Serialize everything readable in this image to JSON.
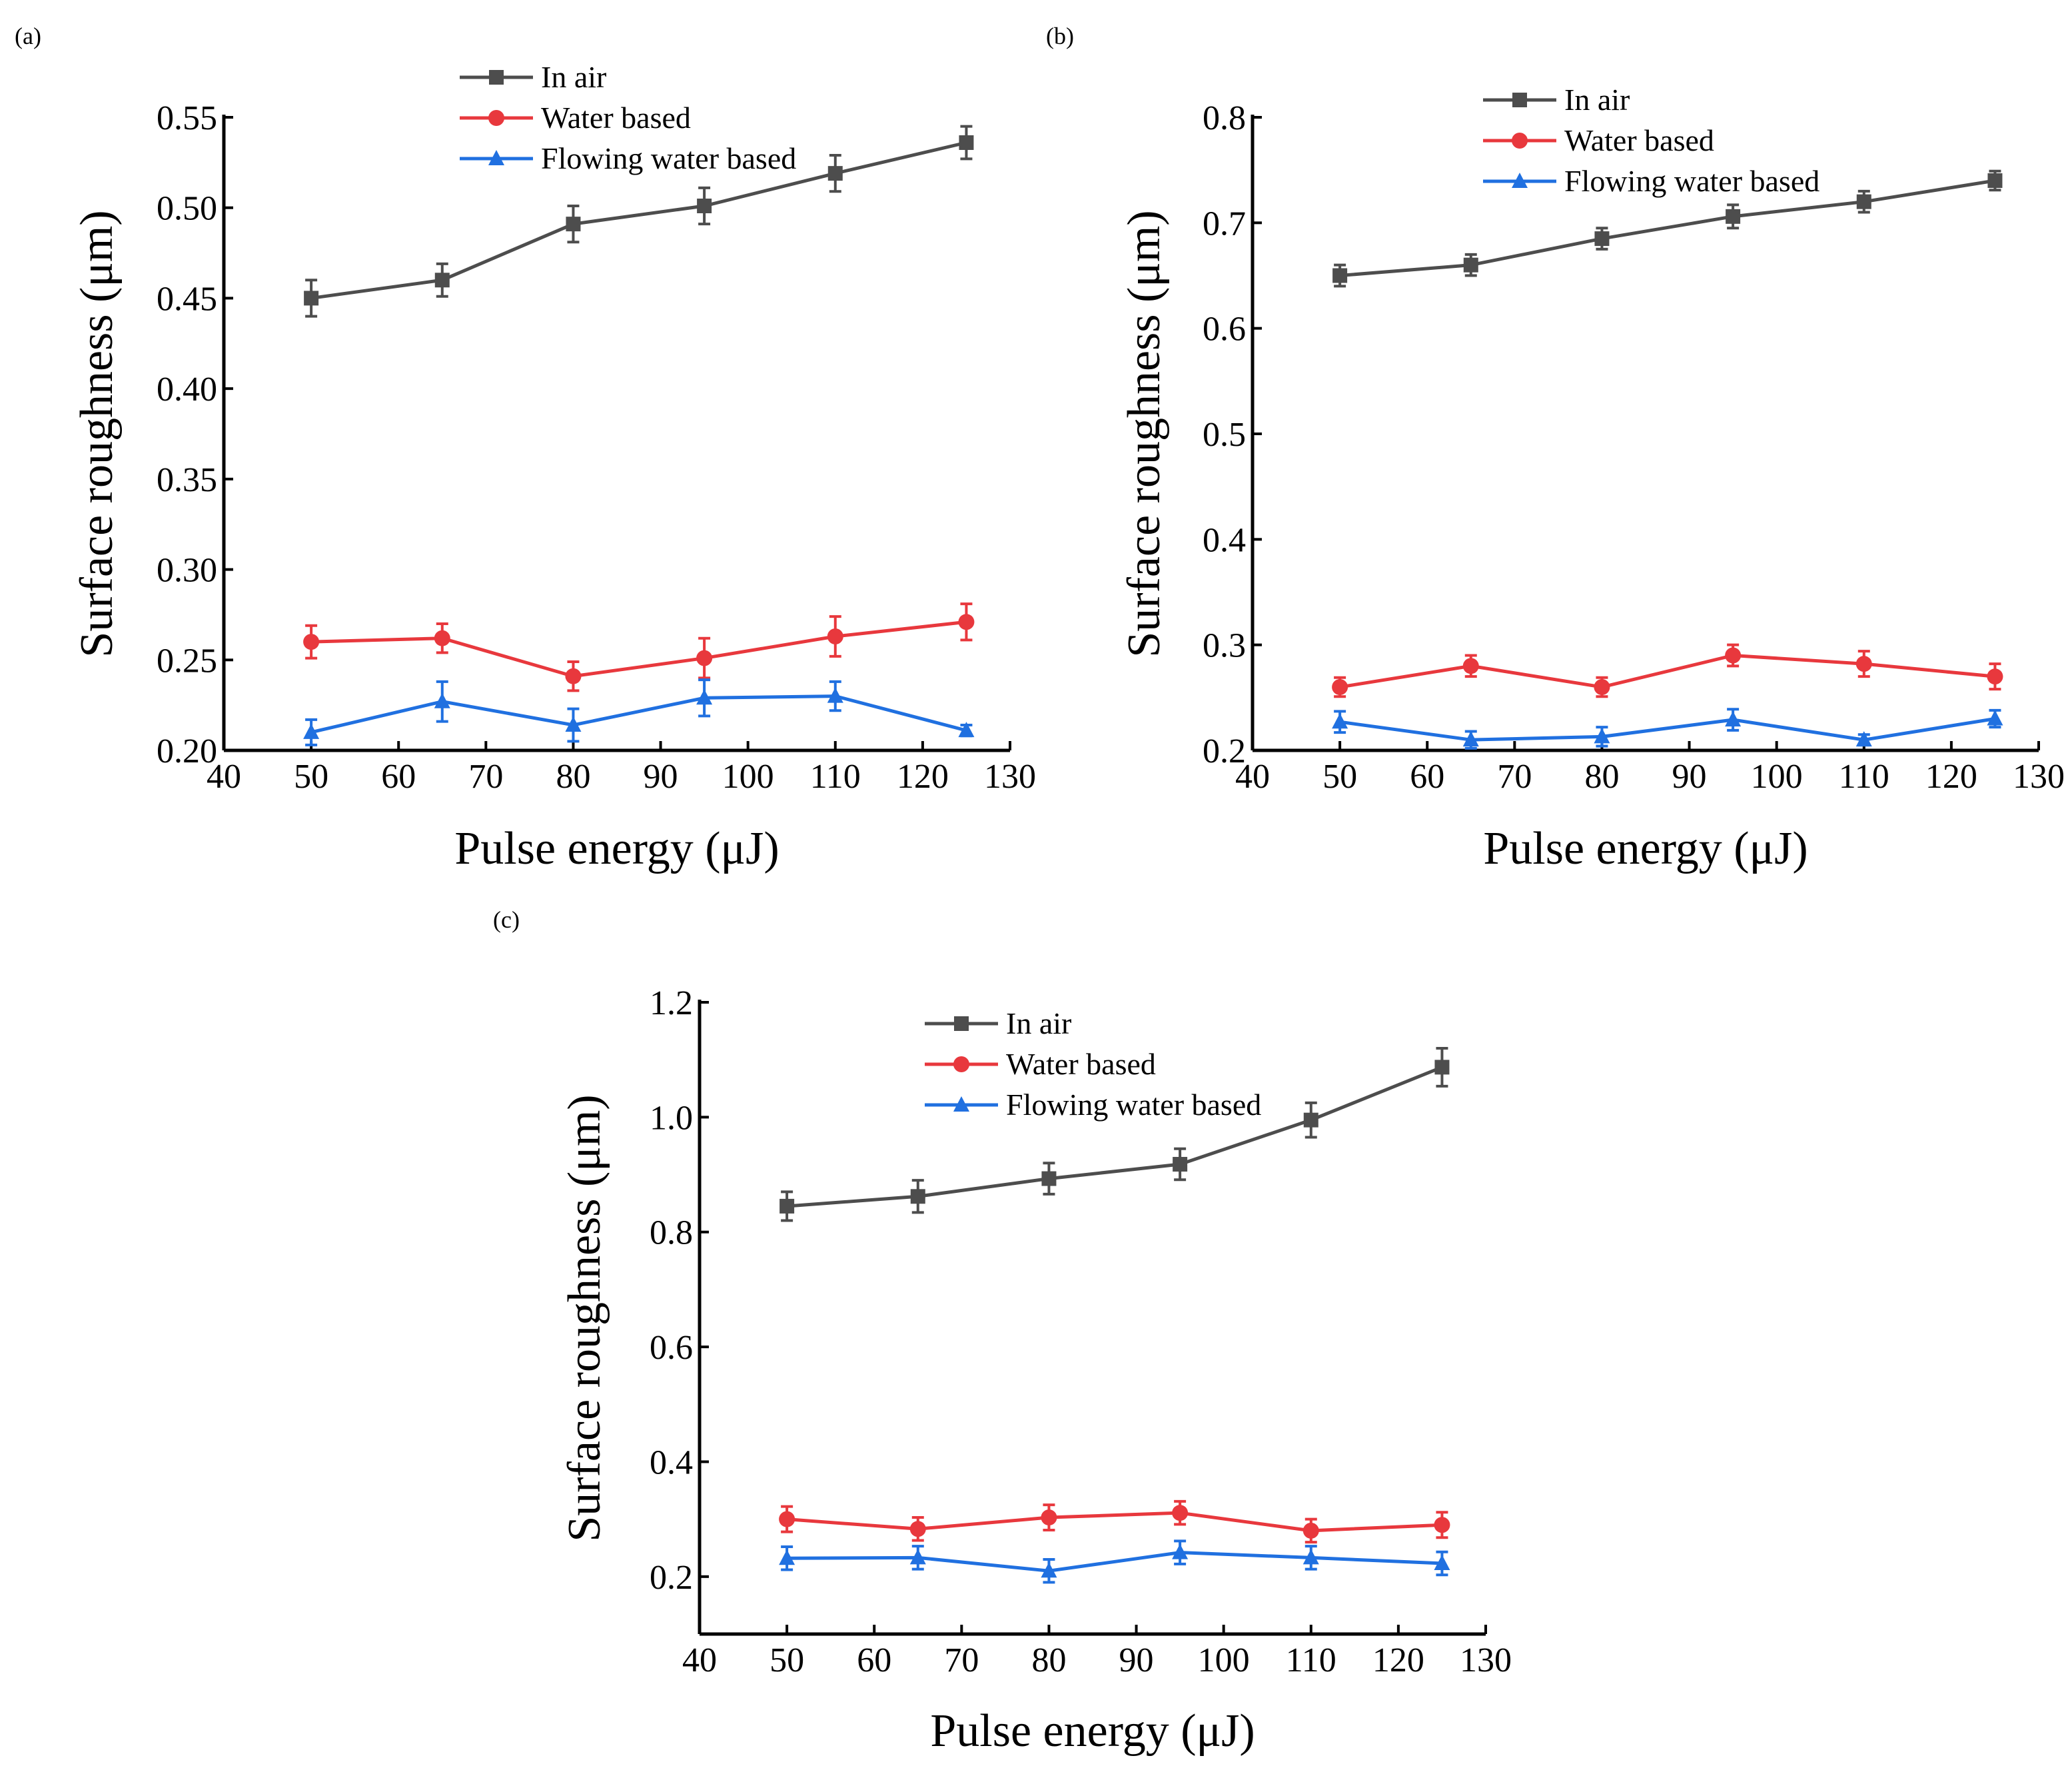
{
  "chart_data": [
    {
      "type": "line",
      "panel_label": "(a)",
      "xlabel": "Pulse energy (μJ)",
      "ylabel": "Surface roughness (μm)",
      "xlim": [
        40,
        130
      ],
      "ylim": [
        0.2,
        0.55
      ],
      "xticks": [
        "40",
        "50",
        "60",
        "70",
        "80",
        "90",
        "100",
        "110",
        "120",
        "130"
      ],
      "yticks": [
        "0.20",
        "0.25",
        "0.30",
        "0.35",
        "0.40",
        "0.45",
        "0.50",
        "0.55"
      ],
      "legend_position": "top-center",
      "x": [
        50,
        65,
        80,
        95,
        110,
        125
      ],
      "series": [
        {
          "name": "In air",
          "color": "#4d4d4d",
          "marker": "square",
          "values": [
            0.45,
            0.46,
            0.491,
            0.501,
            0.519,
            0.536
          ],
          "errors": [
            0.01,
            0.009,
            0.01,
            0.01,
            0.01,
            0.009
          ]
        },
        {
          "name": "Water based",
          "color": "#e8383d",
          "marker": "circle",
          "values": [
            0.26,
            0.262,
            0.241,
            0.251,
            0.263,
            0.271
          ],
          "errors": [
            0.009,
            0.008,
            0.008,
            0.011,
            0.011,
            0.01
          ]
        },
        {
          "name": "Flowing water based",
          "color": "#2070e0",
          "marker": "triangle",
          "values": [
            0.21,
            0.227,
            0.214,
            0.229,
            0.23,
            0.211
          ],
          "errors": [
            0.007,
            0.011,
            0.009,
            0.01,
            0.008,
            0.003
          ]
        }
      ]
    },
    {
      "type": "line",
      "panel_label": "(b)",
      "xlabel": "Pulse energy (μJ)",
      "ylabel": "Surface roughness (μm)",
      "xlim": [
        40,
        130
      ],
      "ylim": [
        0.2,
        0.8
      ],
      "xticks": [
        "40",
        "50",
        "60",
        "70",
        "80",
        "90",
        "100",
        "110",
        "120",
        "130"
      ],
      "yticks": [
        "0.2",
        "0.3",
        "0.4",
        "0.5",
        "0.6",
        "0.7",
        "0.8"
      ],
      "legend_position": "top-center",
      "x": [
        50,
        65,
        80,
        95,
        110,
        125
      ],
      "series": [
        {
          "name": "In air",
          "color": "#4d4d4d",
          "marker": "square",
          "values": [
            0.65,
            0.66,
            0.685,
            0.706,
            0.72,
            0.74
          ],
          "errors": [
            0.01,
            0.01,
            0.01,
            0.011,
            0.01,
            0.009
          ]
        },
        {
          "name": "Water based",
          "color": "#e8383d",
          "marker": "circle",
          "values": [
            0.26,
            0.28,
            0.26,
            0.29,
            0.282,
            0.27
          ],
          "errors": [
            0.009,
            0.01,
            0.009,
            0.01,
            0.012,
            0.012
          ]
        },
        {
          "name": "Flowing water based",
          "color": "#2070e0",
          "marker": "triangle",
          "values": [
            0.227,
            0.21,
            0.213,
            0.229,
            0.21,
            0.23
          ],
          "errors": [
            0.01,
            0.008,
            0.009,
            0.01,
            0.005,
            0.008
          ]
        }
      ]
    },
    {
      "type": "line",
      "panel_label": "(c)",
      "xlabel": "Pulse energy (μJ)",
      "ylabel": "Surface roughness (μm)",
      "xlim": [
        40,
        130
      ],
      "ylim": [
        0.1,
        1.2
      ],
      "xticks": [
        "40",
        "50",
        "60",
        "70",
        "80",
        "90",
        "100",
        "110",
        "120",
        "130"
      ],
      "yticks": [
        "0.2",
        "0.4",
        "0.6",
        "0.8",
        "1.0",
        "1.2"
      ],
      "legend_position": "top-center",
      "x": [
        50,
        65,
        80,
        95,
        110,
        125
      ],
      "series": [
        {
          "name": "In air",
          "color": "#4d4d4d",
          "marker": "square",
          "values": [
            0.845,
            0.862,
            0.893,
            0.918,
            0.995,
            1.087
          ],
          "errors": [
            0.025,
            0.028,
            0.027,
            0.027,
            0.03,
            0.033
          ]
        },
        {
          "name": "Water based",
          "color": "#e8383d",
          "marker": "circle",
          "values": [
            0.3,
            0.283,
            0.303,
            0.311,
            0.28,
            0.29
          ],
          "errors": [
            0.022,
            0.02,
            0.022,
            0.02,
            0.02,
            0.022
          ]
        },
        {
          "name": "Flowing water based",
          "color": "#2070e0",
          "marker": "triangle",
          "values": [
            0.232,
            0.233,
            0.21,
            0.242,
            0.233,
            0.223
          ],
          "errors": [
            0.02,
            0.02,
            0.02,
            0.02,
            0.02,
            0.02
          ]
        }
      ]
    }
  ]
}
